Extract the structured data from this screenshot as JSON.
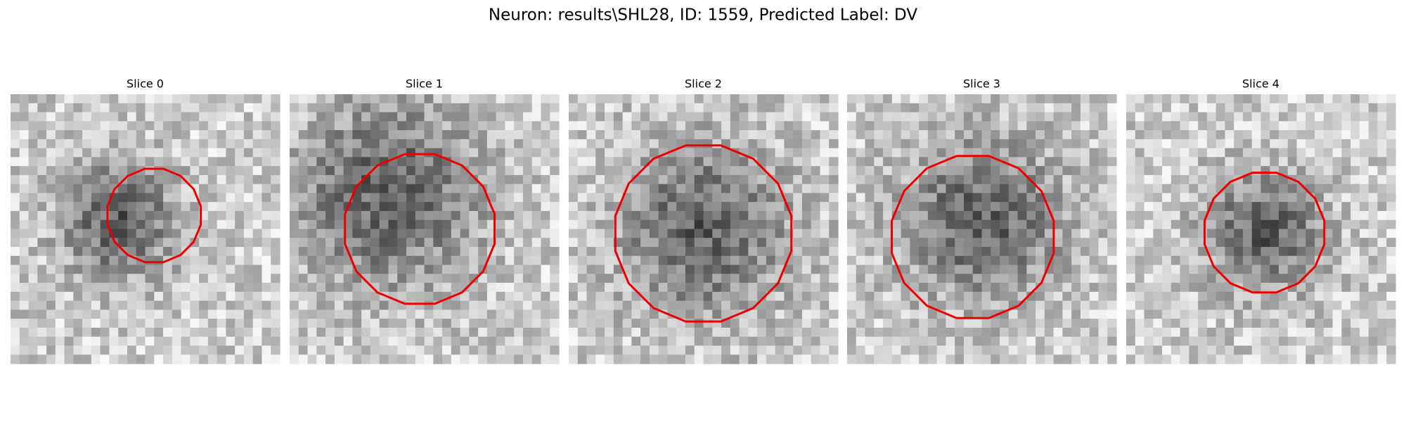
{
  "title": "Neuron: results\\SHL28, ID: 1559, Predicted Label: DV",
  "panels": [
    {
      "title": "Slice 0"
    },
    {
      "title": "Slice 1"
    },
    {
      "title": "Slice 2"
    },
    {
      "title": "Slice 3"
    },
    {
      "title": "Slice 4"
    }
  ]
}
